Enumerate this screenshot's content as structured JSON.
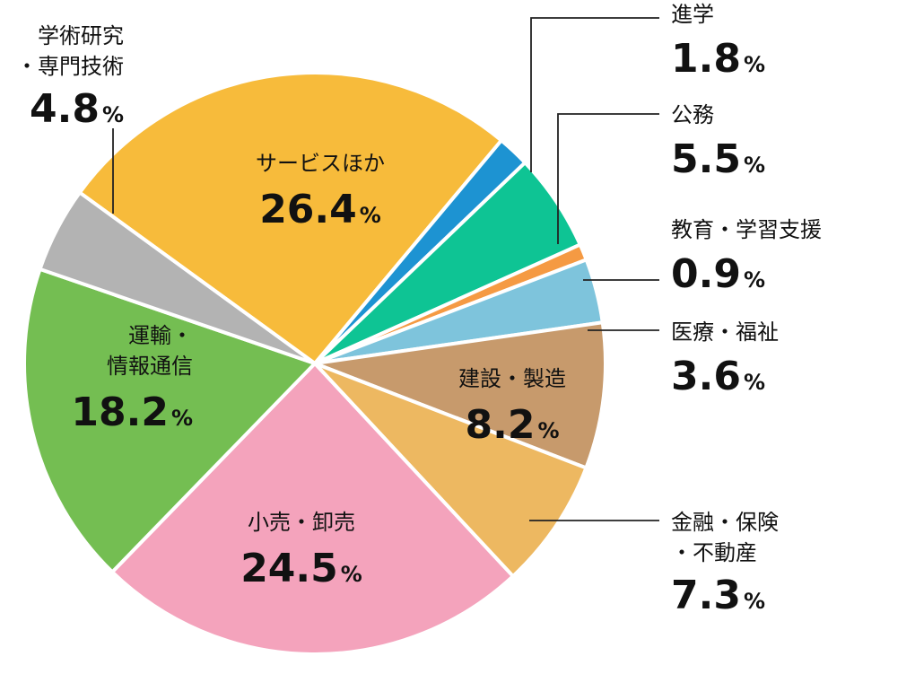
{
  "chart_data": {
    "type": "pie",
    "unit": "%",
    "slices": [
      {
        "name": "サービスほか",
        "value": 26.4,
        "color": "#F7BB3B"
      },
      {
        "name": "進学",
        "value": 1.8,
        "color": "#1D93D2"
      },
      {
        "name": "公務",
        "value": 5.5,
        "color": "#0EC494"
      },
      {
        "name": "教育・学習支援",
        "value": 0.9,
        "color": "#F59A43"
      },
      {
        "name": "医療・福祉",
        "value": 3.6,
        "color": "#7EC4DC"
      },
      {
        "name": "建設・製造",
        "value": 8.2,
        "color": "#C79A6C"
      },
      {
        "name": "金融・保険・不動産",
        "value": 7.3,
        "color": "#EDB861"
      },
      {
        "name": "小売・卸売",
        "value": 24.5,
        "color": "#F4A3BC"
      },
      {
        "name": "運輸・情報通信",
        "value": 18.2,
        "color": "#74BE52"
      },
      {
        "name": "学術研究・専門技術",
        "value": 4.8,
        "color": "#B3B3B3"
      }
    ],
    "labels": [
      {
        "lines": [
          "サービスほか"
        ],
        "value": "26.4"
      },
      {
        "lines": [
          "進学"
        ],
        "value": "1.8"
      },
      {
        "lines": [
          "公務"
        ],
        "value": "5.5"
      },
      {
        "lines": [
          "教育・学習支援"
        ],
        "value": "0.9"
      },
      {
        "lines": [
          "医療・福祉"
        ],
        "value": "3.6"
      },
      {
        "lines": [
          "建設・製造"
        ],
        "value": "8.2"
      },
      {
        "lines": [
          "金融・保険",
          "・不動産"
        ],
        "value": "7.3"
      },
      {
        "lines": [
          "小売・卸売"
        ],
        "value": "24.5"
      },
      {
        "lines": [
          "運輸・",
          "情報通信"
        ],
        "value": "18.2"
      },
      {
        "lines": [
          "学術研究",
          "・専門技術"
        ],
        "value": "4.8"
      }
    ]
  }
}
